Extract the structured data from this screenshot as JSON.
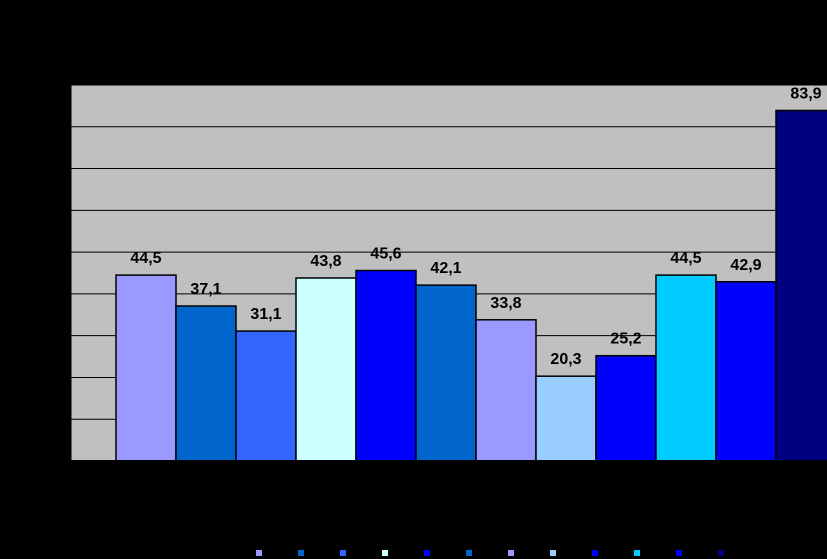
{
  "chart_data": {
    "type": "bar",
    "title": "",
    "xlabel": "",
    "ylabel": "",
    "ylim": [
      0,
      90
    ],
    "grid": true,
    "legend": "bottom",
    "plot_background": "#C0C0C0",
    "page_background": "#000000",
    "bars": [
      {
        "value": 44.5,
        "label": "44,5",
        "color": "#9999FF"
      },
      {
        "value": 37.1,
        "label": "37,1",
        "color": "#0066CC"
      },
      {
        "value": 31.1,
        "label": "31,1",
        "color": "#3366FF"
      },
      {
        "value": 43.8,
        "label": "43,8",
        "color": "#CCFFFF"
      },
      {
        "value": 45.6,
        "label": "45,6",
        "color": "#0000FF"
      },
      {
        "value": 42.1,
        "label": "42,1",
        "color": "#0066CC"
      },
      {
        "value": 33.8,
        "label": "33,8",
        "color": "#9999FF"
      },
      {
        "value": 20.3,
        "label": "20,3",
        "color": "#99CCFF"
      },
      {
        "value": 25.2,
        "label": "25,2",
        "color": "#0000FF"
      },
      {
        "value": 44.5,
        "label": "44,5",
        "color": "#00CCFF"
      },
      {
        "value": 42.9,
        "label": "42,9",
        "color": "#0000FF"
      },
      {
        "value": 83.9,
        "label": "83,9",
        "color": "#000080"
      }
    ]
  }
}
